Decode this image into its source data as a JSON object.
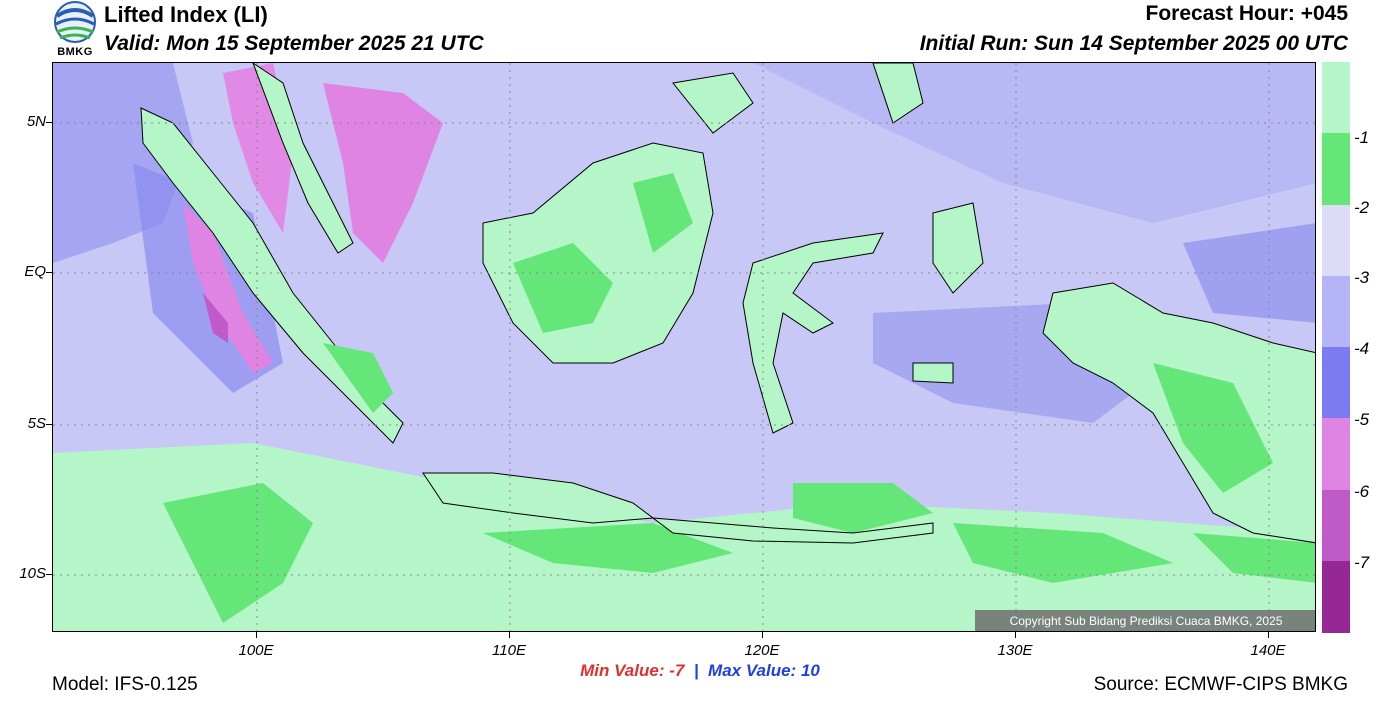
{
  "header": {
    "title": "Lifted Index (LI)",
    "valid": "Valid: Mon 15 September 2025 21 UTC",
    "forecast_hour": "Forecast Hour: +045",
    "initial_run": "Initial Run: Sun 14 September 2025 00 UTC"
  },
  "logo": {
    "text": "BMKG",
    "icon": "bmkg-logo-icon"
  },
  "axes": {
    "lat_labels": [
      "5N",
      "EQ",
      "5S",
      "10S"
    ],
    "lon_labels": [
      "100E",
      "110E",
      "120E",
      "130E",
      "140E"
    ]
  },
  "colorbar": {
    "labels": [
      "-1",
      "-2",
      "-3",
      "-4",
      "-5",
      "-6",
      "-7"
    ],
    "colors": [
      "#b4f6c8",
      "#64e678",
      "#dcdcf8",
      "#b4b4f6",
      "#7c7cf0",
      "#e084e4",
      "#c05ac8",
      "#962896"
    ]
  },
  "copyright": "Copyright Sub Bidang Prediksi Cuaca BMKG, 2025",
  "stats": {
    "min_label": "Min Value:",
    "min_value": "-7",
    "separator": "|",
    "max_label": "Max Value:",
    "max_value": "10"
  },
  "footer": {
    "model": "Model: IFS-0.125",
    "source": "Source: ECMWF-CIPS BMKG"
  }
}
